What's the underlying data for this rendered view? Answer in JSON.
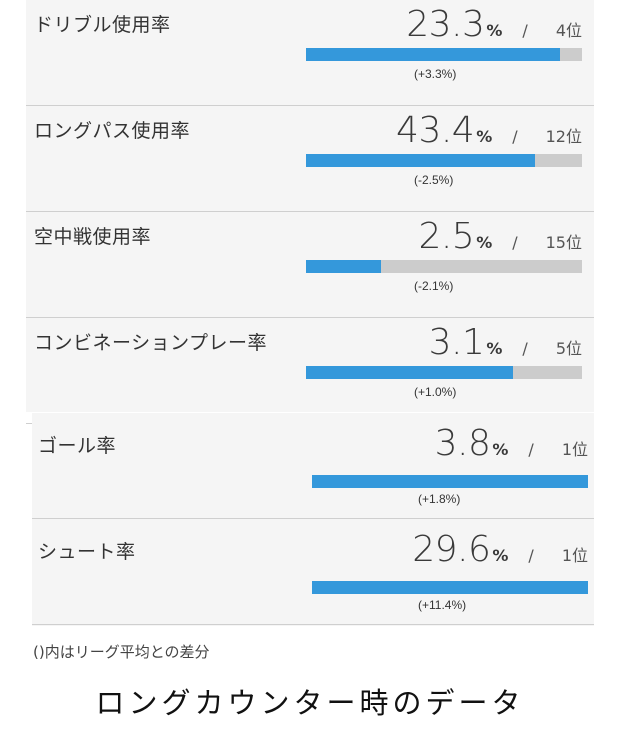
{
  "stats_group_1": [
    {
      "label": "ドリブル使用率",
      "value": "23.3",
      "unit": "%",
      "slash": "/",
      "rank": "4位",
      "fill_fraction": 0.92,
      "diff": "(+3.3%)"
    },
    {
      "label": "ロングパス使用率",
      "value": "43.4",
      "unit": "%",
      "slash": "/",
      "rank": "12位",
      "fill_fraction": 0.83,
      "diff": "(-2.5%)"
    },
    {
      "label": "空中戦使用率",
      "value": "2.5",
      "unit": "%",
      "slash": "/",
      "rank": "15位",
      "fill_fraction": 0.27,
      "diff": "(-2.1%)"
    },
    {
      "label": "コンビネーションプレー率",
      "value": "3.1",
      "unit": "%",
      "slash": "/",
      "rank": "5位",
      "fill_fraction": 0.75,
      "diff": "(+1.0%)"
    }
  ],
  "stats_group_2": [
    {
      "label": "ゴール率",
      "value": "3.8",
      "unit": "%",
      "slash": "/",
      "rank": "1位",
      "fill_fraction": 1.0,
      "diff": "(+1.8%)"
    },
    {
      "label": "シュート率",
      "value": "29.6",
      "unit": "%",
      "slash": "/",
      "rank": "1位",
      "fill_fraction": 1.0,
      "diff": "(+11.4%)"
    }
  ],
  "footnote": "()内はリーグ平均との差分",
  "caption": "ロングカウンター時のデータ",
  "colors": {
    "bar_fill": "#3498db",
    "bar_track": "#cccccc",
    "panel": "#f5f5f5"
  }
}
